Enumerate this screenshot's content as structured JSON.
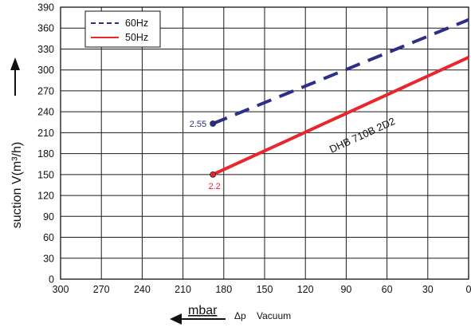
{
  "chart_data": {
    "type": "line",
    "ylabel": "suction V(m³/h)",
    "xlabel_unit": "mbar",
    "xlabel_symbol": "Δp",
    "xlabel_text": "Vacuum",
    "x_ticks": [
      300,
      270,
      240,
      210,
      180,
      150,
      120,
      90,
      60,
      30,
      0
    ],
    "y_ticks": [
      0,
      30,
      60,
      90,
      120,
      150,
      180,
      210,
      240,
      270,
      300,
      330,
      360,
      390
    ],
    "xlim": [
      300,
      0
    ],
    "ylim": [
      0,
      390
    ],
    "x_reversed": true,
    "grid": true,
    "legend_placement": "top-left",
    "series": [
      {
        "name": "60Hz",
        "color": "#2b2f8a",
        "dash": "dashed",
        "points": [
          [
            188,
            223
          ],
          [
            0,
            372
          ]
        ],
        "start_label": "2.55"
      },
      {
        "name": "50Hz",
        "color": "#e8262b",
        "dash": "solid",
        "points": [
          [
            188,
            150
          ],
          [
            0,
            318
          ]
        ],
        "start_label": "2.2"
      }
    ],
    "annotation": "DHB 710B 2D2"
  }
}
